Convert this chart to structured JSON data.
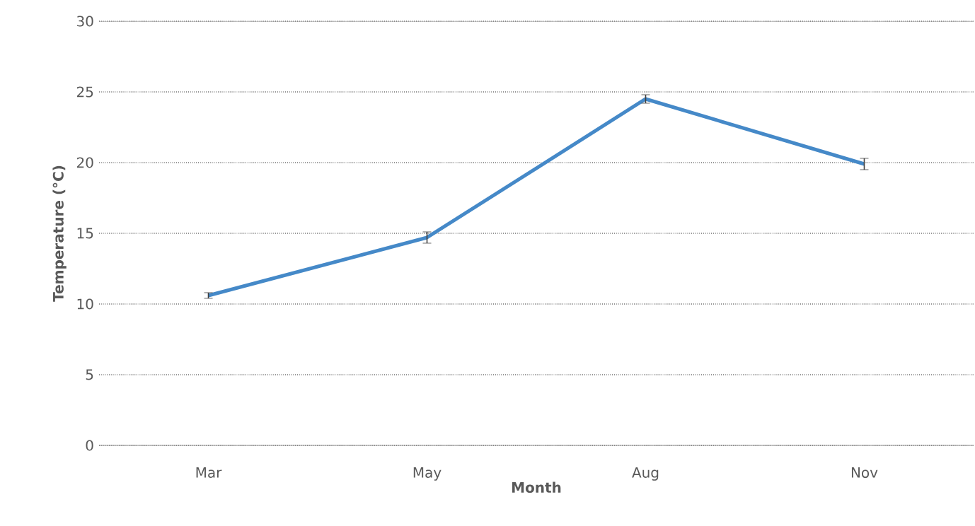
{
  "chart_data": {
    "type": "line",
    "xlabel": "Month",
    "ylabel": "Temperature (°C)",
    "categories": [
      "Mar",
      "May",
      "Aug",
      "Nov"
    ],
    "series": [
      {
        "color": "#4589c8",
        "values": [
          10.6,
          14.7,
          24.5,
          19.9
        ],
        "errors": [
          0.2,
          0.4,
          0.3,
          0.4
        ]
      }
    ],
    "ylim": [
      0,
      30
    ],
    "yticks": [
      0,
      5,
      10,
      15,
      20,
      25,
      30
    ],
    "grid": "y",
    "marker": "none",
    "line_style": "solid"
  }
}
